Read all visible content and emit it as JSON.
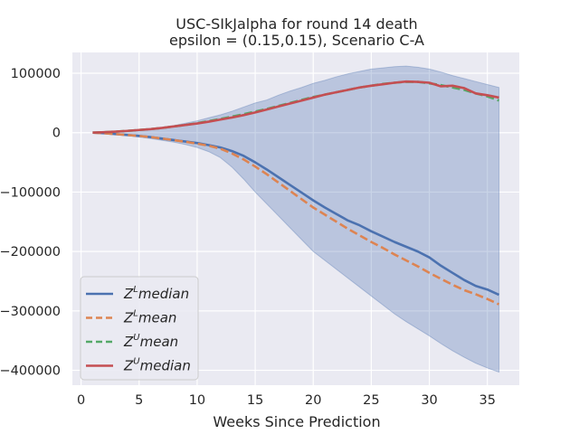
{
  "chart_data": {
    "type": "line",
    "title_line1": "USC-SIkJalpha for round 14 death",
    "title_line2": "epsilon = (0.15,0.15), Scenario C-A",
    "xlabel": "Weeks Since Prediction",
    "ylabel": "",
    "xlim": [
      -0.75,
      37.75
    ],
    "ylim": [
      -425000,
      135000
    ],
    "xticks": [
      0,
      5,
      10,
      15,
      20,
      25,
      30,
      35
    ],
    "xtick_labels": [
      "0",
      "5",
      "10",
      "15",
      "20",
      "25",
      "30",
      "35"
    ],
    "yticks": [
      100000,
      0,
      -100000,
      -200000,
      -300000,
      -400000
    ],
    "ytick_labels": [
      "100000",
      "0",
      "−100000",
      "−200000",
      "−300000",
      "−400000"
    ],
    "grid": true,
    "legend_position": "lower-left",
    "x": [
      1,
      2,
      3,
      4,
      5,
      6,
      7,
      8,
      9,
      10,
      11,
      12,
      13,
      14,
      15,
      16,
      17,
      18,
      19,
      20,
      21,
      22,
      23,
      24,
      25,
      26,
      27,
      28,
      29,
      30,
      31,
      32,
      33,
      34,
      35,
      36
    ],
    "band": {
      "color": "#4c72b0",
      "upper": [
        0,
        1000,
        2000,
        3500,
        5000,
        7000,
        9000,
        12000,
        16000,
        20000,
        25000,
        30000,
        36000,
        43000,
        50000,
        55000,
        63000,
        70000,
        76000,
        83000,
        88000,
        94000,
        99000,
        103000,
        107000,
        109000,
        111000,
        112000,
        110000,
        107000,
        102000,
        96000,
        91000,
        86000,
        81000,
        76000
      ],
      "lower": [
        0,
        -1500,
        -3000,
        -5000,
        -7500,
        -10000,
        -13000,
        -16000,
        -20000,
        -25000,
        -32000,
        -42000,
        -58000,
        -78000,
        -100000,
        -120000,
        -140000,
        -160000,
        -180000,
        -200000,
        -215000,
        -230000,
        -245000,
        -260000,
        -275000,
        -290000,
        -305000,
        -318000,
        -330000,
        -342000,
        -355000,
        -367000,
        -378000,
        -388000,
        -396000,
        -403000
      ]
    },
    "series": [
      {
        "label": "median",
        "superscript": "L",
        "color": "#4c72b0",
        "dash": "solid",
        "values": [
          0,
          -1000,
          -2500,
          -4000,
          -5500,
          -7500,
          -10000,
          -12500,
          -15000,
          -17500,
          -21000,
          -25000,
          -31000,
          -39000,
          -50000,
          -62000,
          -75000,
          -88000,
          -101000,
          -114000,
          -126000,
          -137000,
          -148000,
          -156000,
          -166000,
          -175000,
          -184000,
          -192000,
          -200000,
          -210000,
          -224000,
          -236000,
          -248000,
          -258000,
          -264000,
          -273000
        ]
      },
      {
        "label": "mean",
        "superscript": "L",
        "color": "#dd8452",
        "dash": "dashed",
        "values": [
          0,
          -1000,
          -2500,
          -4000,
          -5500,
          -7500,
          -10000,
          -12500,
          -15500,
          -18500,
          -22000,
          -27000,
          -35000,
          -45000,
          -57000,
          -70000,
          -84000,
          -98000,
          -112000,
          -126000,
          -138000,
          -150000,
          -162000,
          -173000,
          -184000,
          -194000,
          -205000,
          -215000,
          -225000,
          -236000,
          -246000,
          -256000,
          -265000,
          -272000,
          -280000,
          -289000
        ]
      },
      {
        "label": "mean",
        "superscript": "U",
        "color": "#55a868",
        "dash": "dashed",
        "values": [
          0,
          800,
          1800,
          3000,
          4500,
          6000,
          8000,
          10500,
          13000,
          16000,
          19500,
          23000,
          27000,
          31000,
          35500,
          40000,
          45000,
          50000,
          55000,
          60000,
          64000,
          68000,
          72000,
          76000,
          79000,
          82000,
          84000,
          85500,
          85500,
          83000,
          80000,
          76000,
          72000,
          66000,
          61000,
          54000
        ]
      },
      {
        "label": "median",
        "superscript": "U",
        "color": "#c44e52",
        "dash": "solid",
        "values": [
          0,
          800,
          1800,
          3000,
          4500,
          6000,
          8000,
          10500,
          13000,
          15500,
          18500,
          22000,
          25500,
          29500,
          34000,
          39000,
          44000,
          49000,
          54000,
          59000,
          64000,
          68000,
          72000,
          76000,
          79000,
          81500,
          84000,
          86000,
          85500,
          84000,
          78000,
          79000,
          75000,
          66000,
          63000,
          59000
        ]
      }
    ]
  }
}
